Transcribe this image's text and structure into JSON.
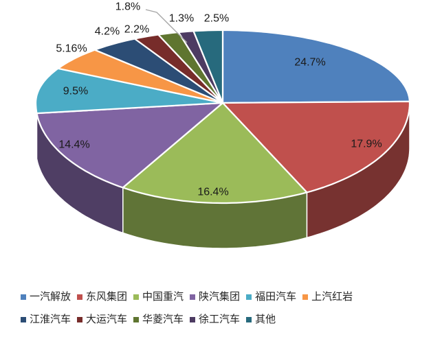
{
  "chart_data": {
    "type": "pie",
    "style": "3d",
    "title": "",
    "legend_position": "bottom",
    "background_color": "#FFFFFF",
    "label_color": "#1A1A1A",
    "leader_line_color": "#A6A6A6",
    "slices": [
      {
        "label": "一汽解放",
        "value": 24.7,
        "value_label": "24.7%",
        "color": "#4F81BD"
      },
      {
        "label": "东风集团",
        "value": 17.9,
        "value_label": "17.9%",
        "color": "#C0504D"
      },
      {
        "label": "中国重汽",
        "value": 16.4,
        "value_label": "16.4%",
        "color": "#9BBB59"
      },
      {
        "label": "陕汽集团",
        "value": 14.4,
        "value_label": "14.4%",
        "color": "#8064A2"
      },
      {
        "label": "福田汽车",
        "value": 9.5,
        "value_label": "9.5%",
        "color": "#4BACC6"
      },
      {
        "label": "上汽红岩",
        "value": 5.16,
        "value_label": "5.16%",
        "color": "#F79646"
      },
      {
        "label": "江淮汽车",
        "value": 4.2,
        "value_label": "4.2%",
        "color": "#2C4D75"
      },
      {
        "label": "大运汽车",
        "value": 2.2,
        "value_label": "2.2%",
        "color": "#772C2A"
      },
      {
        "label": "华菱汽车",
        "value": 1.8,
        "value_label": "1.8%",
        "color": "#5F7530"
      },
      {
        "label": "徐工汽车",
        "value": 1.3,
        "value_label": "1.3%",
        "color": "#4D3B62"
      },
      {
        "label": "其他",
        "value": 2.5,
        "value_label": "2.5%",
        "color": "#276A7D"
      }
    ]
  }
}
